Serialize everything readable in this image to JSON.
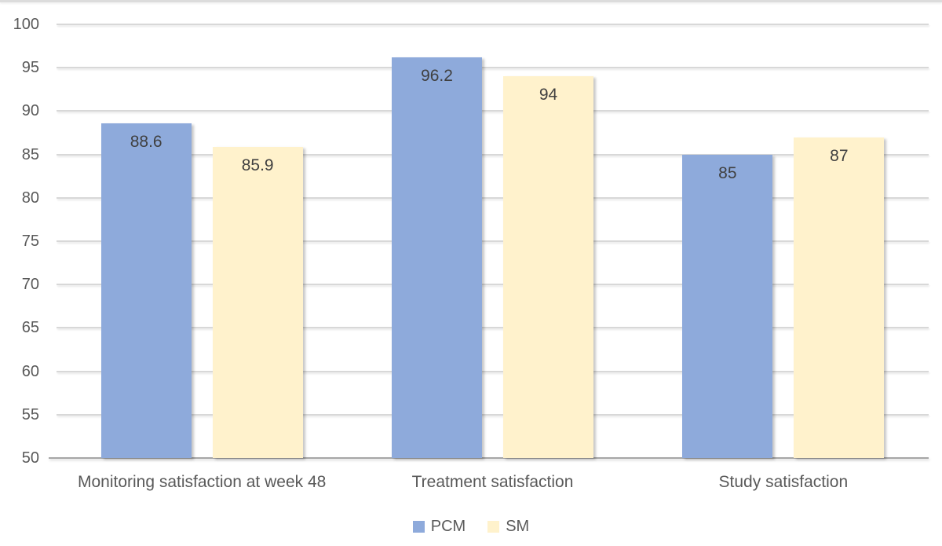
{
  "chart_data": {
    "type": "bar",
    "title": "",
    "xlabel": "",
    "ylabel": "",
    "categories": [
      "Monitoring satisfaction at week 48",
      "Treatment satisfaction",
      "Study satisfaction"
    ],
    "series": [
      {
        "name": "PCM",
        "color": "#8EAADB",
        "values": [
          88.6,
          96.2,
          85
        ]
      },
      {
        "name": "SM",
        "color": "#FFF2CC",
        "values": [
          85.9,
          94,
          87
        ]
      }
    ],
    "ylim": [
      50,
      100
    ],
    "yticks": [
      100,
      95,
      90,
      85,
      80,
      75,
      70,
      65,
      60,
      55,
      50
    ],
    "grid": true,
    "data_labels_position": "inside-end",
    "legend_position": "bottom"
  }
}
